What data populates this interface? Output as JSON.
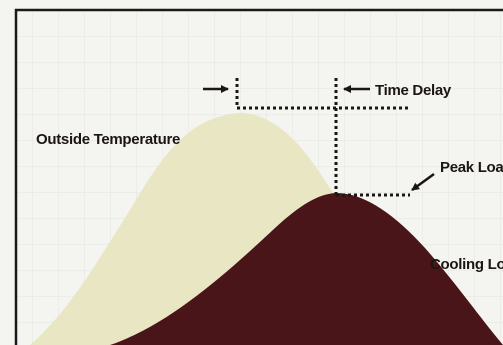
{
  "diagram": {
    "labels": {
      "outside_temperature": "Outside Temperature",
      "time_delay": "Time Delay",
      "peak_load": "Peak Load",
      "cooling_load": "Cooling Load"
    },
    "colors": {
      "background": "#f4f4f1",
      "grid": "#e3e3de",
      "frame": "#1a1a1a",
      "outside_temperature_fill": "#e9e6c4",
      "cooling_load_fill": "#4a1518",
      "annotation": "#1b1613"
    }
  }
}
